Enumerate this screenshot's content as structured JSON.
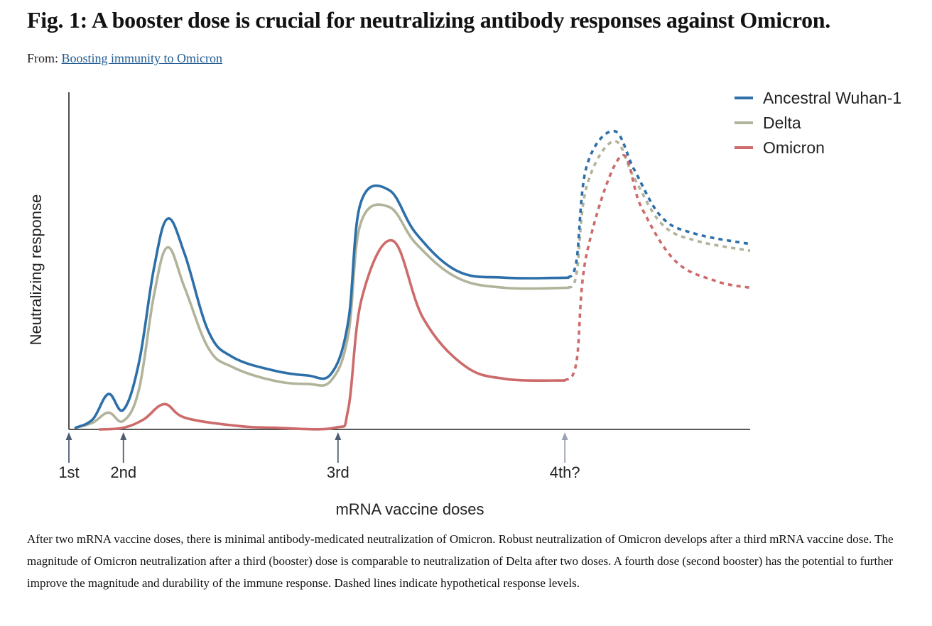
{
  "header": {
    "title": "Fig. 1: A booster dose is crucial for neutralizing antibody responses against Omicron.",
    "from_prefix": "From: ",
    "from_link": "Boosting immunity to Omicron"
  },
  "caption": "After two mRNA vaccine doses, there is minimal antibody-medicated neutralization of Omicron. Robust neutralization of Omicron develops after a third mRNA vaccine dose. The magnitude of Omicron neutralization after a third (booster) dose is comparable to neutralization of Delta after two doses. A fourth dose (second booster) has the potential to further improve the magnitude and durability of the immune response. Dashed lines indicate hypothetical response levels.",
  "chart_data": {
    "type": "line",
    "xlabel": "mRNA vaccine doses",
    "ylabel": "Neutralizing response",
    "x_unit": "normalized time (0 = 1st dose, 1 = end of axis)",
    "y_unit": "relative response (0 = baseline, 1 = axis top)",
    "xlim": [
      0,
      1
    ],
    "ylim": [
      0,
      1
    ],
    "grid": false,
    "legend_position": "top-right",
    "dose_markers": [
      {
        "label": "1st",
        "x": 0.0,
        "color": "#4f5d73"
      },
      {
        "label": "2nd",
        "x": 0.08,
        "color": "#4f5d73"
      },
      {
        "label": "3rd",
        "x": 0.395,
        "color": "#4f5d73"
      },
      {
        "label": "4th?",
        "x": 0.728,
        "color": "#9aa2b0"
      }
    ],
    "series": [
      {
        "name": "Ancestral Wuhan-1",
        "color": "#2d6fa8",
        "solid": [
          [
            0.01,
            0.005
          ],
          [
            0.035,
            0.03
          ],
          [
            0.058,
            0.105
          ],
          [
            0.08,
            0.058
          ],
          [
            0.103,
            0.2
          ],
          [
            0.125,
            0.48
          ],
          [
            0.145,
            0.625
          ],
          [
            0.17,
            0.52
          ],
          [
            0.205,
            0.29
          ],
          [
            0.24,
            0.215
          ],
          [
            0.3,
            0.175
          ],
          [
            0.35,
            0.16
          ],
          [
            0.385,
            0.165
          ],
          [
            0.41,
            0.32
          ],
          [
            0.428,
            0.67
          ],
          [
            0.47,
            0.71
          ],
          [
            0.51,
            0.58
          ],
          [
            0.57,
            0.47
          ],
          [
            0.64,
            0.45
          ],
          [
            0.733,
            0.45
          ]
        ],
        "dashed": [
          [
            0.733,
            0.45
          ],
          [
            0.745,
            0.5
          ],
          [
            0.76,
            0.78
          ],
          [
            0.8,
            0.885
          ],
          [
            0.83,
            0.77
          ],
          [
            0.87,
            0.63
          ],
          [
            0.92,
            0.58
          ],
          [
            1.0,
            0.55
          ]
        ]
      },
      {
        "name": "Delta",
        "color": "#b1b39a",
        "solid": [
          [
            0.01,
            0.005
          ],
          [
            0.035,
            0.02
          ],
          [
            0.058,
            0.05
          ],
          [
            0.08,
            0.025
          ],
          [
            0.103,
            0.12
          ],
          [
            0.125,
            0.4
          ],
          [
            0.145,
            0.54
          ],
          [
            0.17,
            0.42
          ],
          [
            0.205,
            0.24
          ],
          [
            0.24,
            0.185
          ],
          [
            0.3,
            0.145
          ],
          [
            0.35,
            0.135
          ],
          [
            0.385,
            0.145
          ],
          [
            0.41,
            0.28
          ],
          [
            0.428,
            0.61
          ],
          [
            0.47,
            0.66
          ],
          [
            0.51,
            0.55
          ],
          [
            0.57,
            0.45
          ],
          [
            0.64,
            0.42
          ],
          [
            0.733,
            0.42
          ]
        ],
        "dashed": [
          [
            0.733,
            0.42
          ],
          [
            0.745,
            0.46
          ],
          [
            0.76,
            0.72
          ],
          [
            0.8,
            0.855
          ],
          [
            0.83,
            0.745
          ],
          [
            0.87,
            0.61
          ],
          [
            0.92,
            0.56
          ],
          [
            1.0,
            0.53
          ]
        ]
      },
      {
        "name": "Omicron",
        "color": "#cd6b6b",
        "solid": [
          [
            0.045,
            0.0
          ],
          [
            0.08,
            0.005
          ],
          [
            0.11,
            0.03
          ],
          [
            0.14,
            0.075
          ],
          [
            0.17,
            0.035
          ],
          [
            0.24,
            0.012
          ],
          [
            0.3,
            0.005
          ],
          [
            0.39,
            0.005
          ],
          [
            0.41,
            0.06
          ],
          [
            0.43,
            0.39
          ],
          [
            0.475,
            0.56
          ],
          [
            0.52,
            0.33
          ],
          [
            0.58,
            0.19
          ],
          [
            0.64,
            0.15
          ],
          [
            0.728,
            0.145
          ]
        ],
        "dashed": [
          [
            0.728,
            0.145
          ],
          [
            0.745,
            0.2
          ],
          [
            0.76,
            0.52
          ],
          [
            0.81,
            0.81
          ],
          [
            0.84,
            0.66
          ],
          [
            0.89,
            0.5
          ],
          [
            0.95,
            0.44
          ],
          [
            1.0,
            0.42
          ]
        ]
      }
    ]
  }
}
